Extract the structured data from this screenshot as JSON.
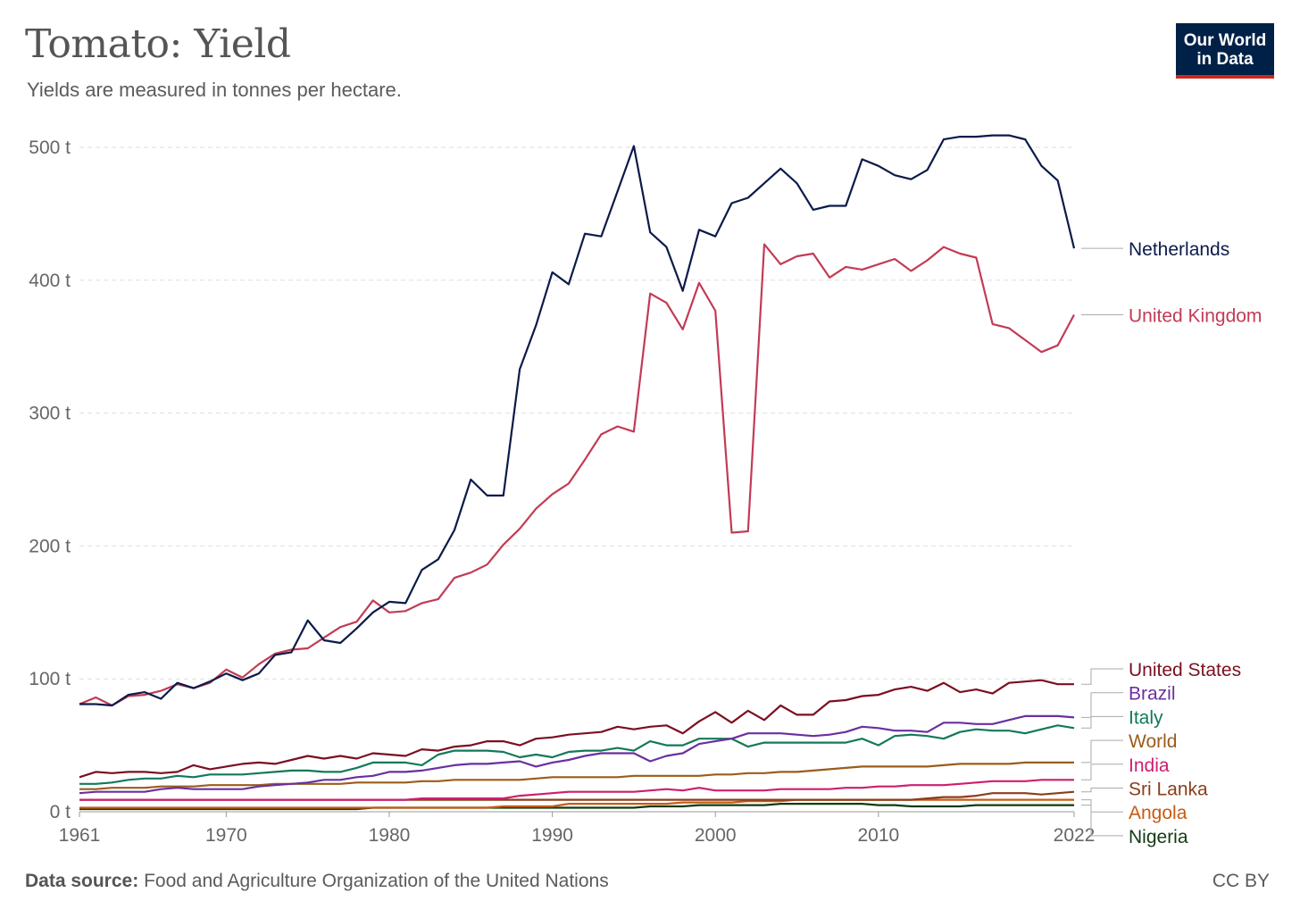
{
  "header": {
    "title": "Tomato: Yield",
    "subtitle": "Yields are measured in tonnes per hectare.",
    "logo_line1": "Our World",
    "logo_line2": "in Data"
  },
  "footer": {
    "source_label": "Data source:",
    "source_text": "Food and Agriculture Organization of the United Nations",
    "license": "CC BY"
  },
  "chart_data": {
    "type": "line",
    "title": "Tomato: Yield",
    "subtitle": "Yields are measured in tonnes per hectare.",
    "xlabel": "",
    "ylabel": "",
    "xlim": [
      1961,
      2022
    ],
    "ylim": [
      0,
      500
    ],
    "x_ticks": [
      1961,
      1970,
      1980,
      1990,
      2000,
      2010,
      2022
    ],
    "x_tick_labels": [
      "1961",
      "1970",
      "1980",
      "1990",
      "2000",
      "2010",
      "2022"
    ],
    "y_ticks": [
      0,
      100,
      200,
      300,
      400,
      500
    ],
    "y_tick_labels": [
      "0 t",
      "100 t",
      "200 t",
      "300 t",
      "400 t",
      "500 t"
    ],
    "grid": "horizontal dashed",
    "legend": "right, labels at line ends",
    "x": [
      1961,
      1962,
      1963,
      1964,
      1965,
      1966,
      1967,
      1968,
      1969,
      1970,
      1971,
      1972,
      1973,
      1974,
      1975,
      1976,
      1977,
      1978,
      1979,
      1980,
      1981,
      1982,
      1983,
      1984,
      1985,
      1986,
      1987,
      1988,
      1989,
      1990,
      1991,
      1992,
      1993,
      1994,
      1995,
      1996,
      1997,
      1998,
      1999,
      2000,
      2001,
      2002,
      2003,
      2004,
      2005,
      2006,
      2007,
      2008,
      2009,
      2010,
      2011,
      2012,
      2013,
      2014,
      2015,
      2016,
      2017,
      2018,
      2019,
      2020,
      2021,
      2022
    ],
    "series": [
      {
        "name": "Netherlands",
        "color": "#0b1a4a",
        "values": [
          81,
          81,
          80,
          88,
          90,
          85,
          97,
          93,
          98,
          104,
          99,
          104,
          118,
          120,
          144,
          129,
          127,
          138,
          150,
          158,
          157,
          182,
          190,
          212,
          250,
          238,
          238,
          333,
          366,
          406,
          397,
          435,
          433,
          467,
          501,
          436,
          425,
          392,
          438,
          433,
          458,
          462,
          473,
          484,
          473,
          453,
          456,
          456,
          491,
          486,
          479,
          476,
          483,
          506,
          508,
          508,
          509,
          509,
          506,
          486,
          475,
          424
        ]
      },
      {
        "name": "United Kingdom",
        "color": "#c23b55",
        "values": [
          81,
          86,
          80,
          87,
          88,
          91,
          96,
          93,
          97,
          107,
          101,
          111,
          119,
          122,
          123,
          131,
          139,
          143,
          159,
          150,
          151,
          157,
          160,
          176,
          180,
          186,
          201,
          213,
          228,
          239,
          247,
          265,
          284,
          290,
          286,
          390,
          383,
          363,
          398,
          377,
          210,
          211,
          427,
          412,
          418,
          420,
          402,
          410,
          408,
          412,
          416,
          407,
          415,
          425,
          420,
          417,
          367,
          364,
          355,
          346,
          351,
          374
        ]
      },
      {
        "name": "United States",
        "color": "#7a1020",
        "values": [
          26,
          30,
          29,
          30,
          30,
          29,
          30,
          35,
          32,
          34,
          36,
          37,
          36,
          39,
          42,
          40,
          42,
          40,
          44,
          43,
          42,
          47,
          46,
          49,
          50,
          53,
          53,
          50,
          55,
          56,
          58,
          59,
          60,
          64,
          62,
          64,
          65,
          59,
          68,
          75,
          67,
          76,
          69,
          80,
          73,
          73,
          83,
          84,
          87,
          88,
          92,
          94,
          91,
          97,
          90,
          92,
          89,
          97,
          98,
          99,
          96,
          96
        ]
      },
      {
        "name": "Brazil",
        "color": "#6a2fa0",
        "values": [
          14,
          15,
          15,
          15,
          15,
          17,
          18,
          17,
          17,
          17,
          17,
          19,
          20,
          21,
          22,
          24,
          24,
          26,
          27,
          30,
          30,
          31,
          33,
          35,
          36,
          36,
          37,
          38,
          34,
          37,
          39,
          42,
          44,
          44,
          44,
          38,
          42,
          44,
          51,
          53,
          55,
          59,
          59,
          59,
          58,
          57,
          58,
          60,
          64,
          63,
          61,
          61,
          60,
          67,
          67,
          66,
          66,
          69,
          72,
          72,
          72,
          71
        ]
      },
      {
        "name": "Italy",
        "color": "#12795a",
        "values": [
          21,
          21,
          22,
          24,
          25,
          25,
          27,
          26,
          28,
          28,
          28,
          29,
          30,
          31,
          31,
          30,
          30,
          33,
          37,
          37,
          37,
          35,
          43,
          46,
          46,
          46,
          45,
          41,
          43,
          41,
          45,
          46,
          46,
          48,
          46,
          53,
          50,
          50,
          55,
          55,
          55,
          49,
          52,
          52,
          52,
          52,
          52,
          52,
          55,
          50,
          57,
          58,
          57,
          55,
          60,
          62,
          61,
          61,
          59,
          62,
          65,
          63
        ]
      },
      {
        "name": "World",
        "color": "#9a5c1b",
        "values": [
          17,
          17,
          18,
          18,
          18,
          19,
          19,
          19,
          20,
          20,
          20,
          20,
          21,
          21,
          21,
          21,
          21,
          22,
          22,
          22,
          22,
          23,
          23,
          24,
          24,
          24,
          24,
          24,
          25,
          26,
          26,
          26,
          26,
          26,
          27,
          27,
          27,
          27,
          27,
          28,
          28,
          29,
          29,
          30,
          30,
          31,
          32,
          33,
          34,
          34,
          34,
          34,
          34,
          35,
          36,
          36,
          36,
          36,
          37,
          37,
          37,
          37
        ]
      },
      {
        "name": "India",
        "color": "#cc1f6f",
        "values": [
          9,
          9,
          9,
          9,
          9,
          9,
          9,
          9,
          9,
          9,
          9,
          9,
          9,
          9,
          9,
          9,
          9,
          9,
          9,
          9,
          9,
          10,
          10,
          10,
          10,
          10,
          10,
          12,
          13,
          14,
          15,
          15,
          15,
          15,
          15,
          16,
          17,
          16,
          18,
          16,
          16,
          16,
          16,
          17,
          17,
          17,
          17,
          18,
          18,
          19,
          19,
          20,
          20,
          20,
          21,
          22,
          23,
          23,
          23,
          24,
          24,
          24
        ]
      },
      {
        "name": "Sri Lanka",
        "color": "#8a3e1a",
        "values": [
          9,
          9,
          9,
          9,
          9,
          9,
          9,
          9,
          9,
          9,
          9,
          9,
          9,
          9,
          9,
          9,
          9,
          9,
          9,
          9,
          9,
          9,
          9,
          9,
          9,
          9,
          9,
          9,
          9,
          9,
          9,
          9,
          9,
          9,
          9,
          9,
          9,
          9,
          9,
          9,
          9,
          9,
          9,
          9,
          9,
          9,
          9,
          9,
          9,
          9,
          9,
          9,
          10,
          11,
          11,
          12,
          14,
          14,
          14,
          13,
          14,
          15
        ]
      },
      {
        "name": "Angola",
        "color": "#c75b12",
        "values": [
          3,
          3,
          3,
          3,
          3,
          3,
          3,
          3,
          3,
          3,
          3,
          3,
          3,
          3,
          3,
          3,
          3,
          3,
          3,
          3,
          3,
          3,
          3,
          3,
          3,
          3,
          4,
          4,
          4,
          4,
          6,
          6,
          6,
          6,
          6,
          6,
          6,
          7,
          7,
          7,
          7,
          8,
          8,
          8,
          9,
          9,
          9,
          9,
          9,
          9,
          9,
          9,
          9,
          9,
          9,
          9,
          9,
          9,
          9,
          9,
          9,
          9
        ]
      },
      {
        "name": "Nigeria",
        "color": "#123a12",
        "values": [
          2,
          2,
          2,
          2,
          2,
          2,
          2,
          2,
          2,
          2,
          2,
          2,
          2,
          2,
          2,
          2,
          2,
          2,
          3,
          3,
          3,
          3,
          3,
          3,
          3,
          3,
          3,
          3,
          3,
          3,
          3,
          3,
          3,
          3,
          3,
          4,
          4,
          4,
          5,
          5,
          5,
          5,
          5,
          6,
          6,
          6,
          6,
          6,
          6,
          5,
          5,
          4,
          4,
          4,
          4,
          5,
          5,
          5,
          5,
          5,
          5,
          5
        ]
      }
    ]
  }
}
